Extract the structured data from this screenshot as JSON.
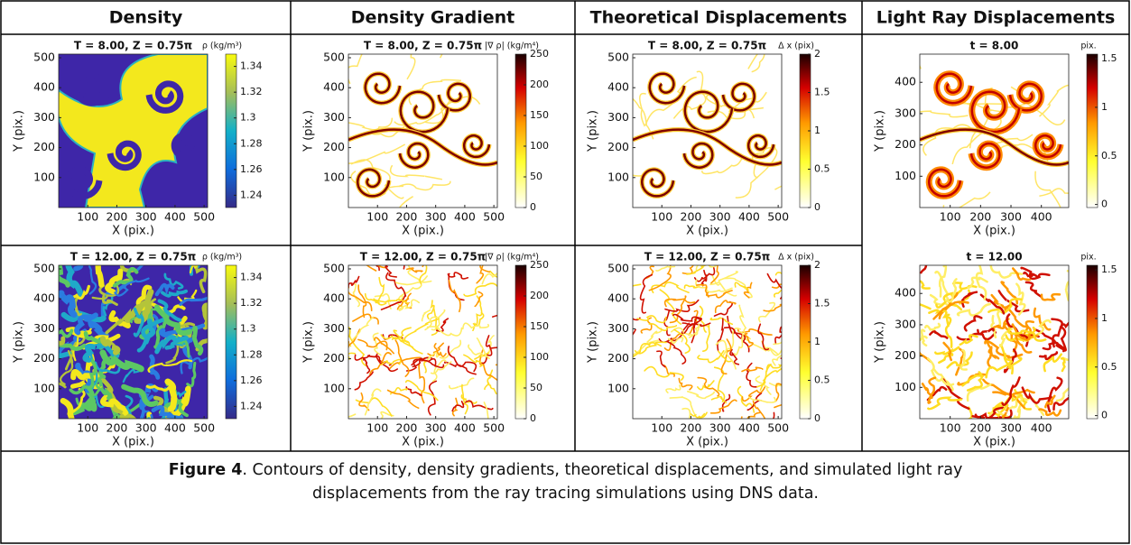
{
  "table": {
    "headers": [
      "Density",
      "Density Gradient",
      "Theoretical Displacements",
      "Light Ray Displacements"
    ],
    "rows": [
      [
        {
          "title": "T = 8.00, Z = 0.75π",
          "colorbar_label": "ρ (kg/m³)",
          "colorbar_ticks": [
            1.24,
            1.26,
            1.28,
            1.3,
            1.32,
            1.34
          ],
          "xticks": [
            100,
            200,
            300,
            400,
            500
          ],
          "yticks": [
            100,
            200,
            300,
            400,
            500
          ],
          "xlabel": "X (pix.)",
          "ylabel": "Y (pix.)"
        },
        {
          "title": "T = 8.00, Z = 0.75π",
          "colorbar_label": "|∇ ρ| (kg/m⁴)",
          "colorbar_ticks": [
            0,
            50,
            100,
            150,
            200,
            250
          ],
          "xticks": [
            100,
            200,
            300,
            400,
            500
          ],
          "yticks": [
            100,
            200,
            300,
            400,
            500
          ],
          "xlabel": "X (pix.)",
          "ylabel": "Y (pix.)"
        },
        {
          "title": "T = 8.00, Z = 0.75π",
          "colorbar_label": "Δ x (pix)",
          "colorbar_ticks": [
            0,
            0.5,
            1,
            1.5,
            2
          ],
          "xticks": [
            100,
            200,
            300,
            400,
            500
          ],
          "yticks": [
            100,
            200,
            300,
            400,
            500
          ],
          "xlabel": "X (pix.)",
          "ylabel": "Y (pix.)"
        },
        {
          "title": "t = 8.00",
          "colorbar_label": "pix.",
          "colorbar_ticks": [
            0,
            0.5,
            1,
            1.5
          ],
          "xticks": [
            100,
            200,
            300,
            400
          ],
          "yticks": [
            100,
            200,
            300,
            400
          ],
          "xlabel": "X (pix.)",
          "ylabel": "Y (pix.)"
        }
      ],
      [
        {
          "title": "T = 12.00, Z = 0.75π",
          "colorbar_label": "ρ (kg/m³)",
          "colorbar_ticks": [
            1.24,
            1.26,
            1.28,
            1.3,
            1.32,
            1.34
          ],
          "xticks": [
            100,
            200,
            300,
            400,
            500
          ],
          "yticks": [
            100,
            200,
            300,
            400,
            500
          ],
          "xlabel": "X (pix.)",
          "ylabel": "Y (pix.)"
        },
        {
          "title": "T = 12.00, Z = 0.75π",
          "colorbar_label": "|∇ ρ| (kg/m⁴)",
          "colorbar_ticks": [
            0,
            50,
            100,
            150,
            200,
            250
          ],
          "xticks": [
            100,
            200,
            300,
            400,
            500
          ],
          "yticks": [
            100,
            200,
            300,
            400,
            500
          ],
          "xlabel": "X (pix.)",
          "ylabel": "Y (pix.)"
        },
        {
          "title": "T = 12.00, Z = 0.75π",
          "colorbar_label": "Δ x (pix)",
          "colorbar_ticks": [
            0,
            0.5,
            1,
            1.5,
            2
          ],
          "xticks": [
            100,
            200,
            300,
            400,
            500
          ],
          "yticks": [
            100,
            200,
            300,
            400,
            500
          ],
          "xlabel": "X (pix.)",
          "ylabel": "Y (pix.)"
        },
        {
          "title": "t = 12.00",
          "colorbar_label": "pix.",
          "colorbar_ticks": [
            0,
            0.5,
            1,
            1.5
          ],
          "xticks": [
            100,
            200,
            300,
            400
          ],
          "yticks": [
            100,
            200,
            300,
            400
          ],
          "xlabel": "X (pix.)",
          "ylabel": "Y (pix.)"
        }
      ]
    ]
  },
  "caption": {
    "label": "Figure 4",
    "text": ". Contours of density, density gradients, theoretical displacements, and simulated light ray displacements from the ray tracing simulations using DNS data."
  }
}
